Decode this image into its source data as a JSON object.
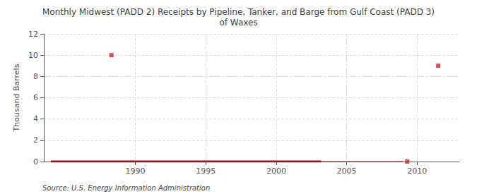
{
  "chart_data": {
    "type": "line",
    "title": "Monthly Midwest (PADD 2) Receipts by Pipeline, Tanker, and Barge from Gulf Coast (PADD 3)\nof Waxes",
    "ylabel": "Thousand Barrels",
    "annotations": [
      "Source: U.S. Energy Information Administration"
    ],
    "xlim": [
      1983.5,
      2013.0
    ],
    "ylim": [
      0,
      12
    ],
    "xticks": [
      1990,
      1995,
      2000,
      2005,
      2010
    ],
    "yticks": [
      0,
      2,
      4,
      6,
      8,
      10,
      12
    ],
    "grid": true,
    "series": [
      {
        "type": "line",
        "line_style": "solid",
        "color": "#8b1a1a",
        "x": [
          1984.0,
          2003.2
        ],
        "values": [
          0,
          0
        ]
      },
      {
        "type": "line",
        "line_style": "solid",
        "color": "#8b1a1a",
        "x": [
          2003.2,
          2009.0
        ],
        "values": [
          0,
          0
        ]
      },
      {
        "type": "scatter",
        "marker": "square",
        "color": "#cc2222",
        "x": [
          1988.3,
          2009.3,
          2011.5
        ],
        "values": [
          10,
          0,
          9
        ]
      }
    ]
  }
}
